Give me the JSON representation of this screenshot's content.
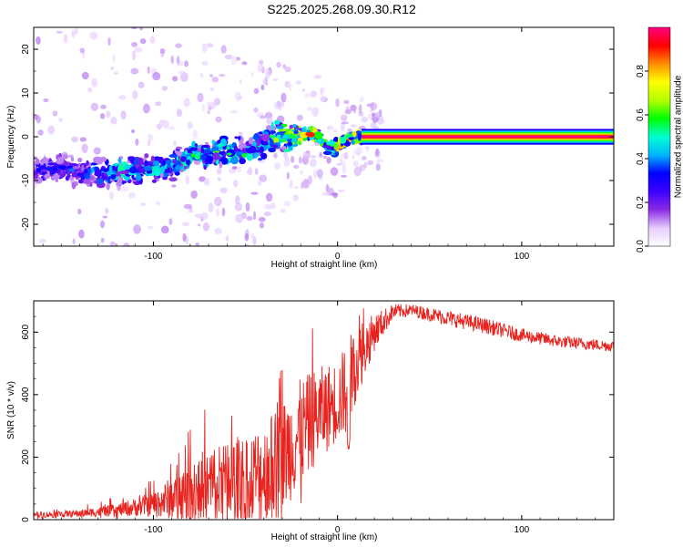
{
  "title": "S225.2025.268.09.30.R12",
  "chart_data": [
    {
      "type": "heatmap",
      "title": "S225.2025.268.09.30.R12",
      "xlabel": "Height of straight line (km)",
      "ylabel": "Frequency (Hz)",
      "xlim": [
        -165,
        150
      ],
      "ylim": [
        -25,
        25
      ],
      "x_ticks": [
        -100,
        0,
        100
      ],
      "y_ticks": [
        -20,
        -10,
        0,
        10,
        20
      ],
      "colorbar": {
        "label": "Normalized spectral amplitude",
        "range": [
          0,
          1
        ],
        "ticks": [
          0.0,
          0.2,
          0.4,
          0.6,
          0.8
        ],
        "colors": [
          "#ffffff",
          "#e6ccff",
          "#8a2be2",
          "#3c00ff",
          "#0000ff",
          "#00b7ff",
          "#00ffd0",
          "#00ff00",
          "#b4ff00",
          "#ffff00",
          "#ff8c00",
          "#ff0000",
          "#ff007f"
        ]
      },
      "ridge": [
        {
          "x": -160,
          "f": -7.5,
          "a": 0.35
        },
        {
          "x": -150,
          "f": -7.5,
          "a": 0.35
        },
        {
          "x": -140,
          "f": -8.0,
          "a": 0.38
        },
        {
          "x": -130,
          "f": -8.5,
          "a": 0.45
        },
        {
          "x": -120,
          "f": -8.0,
          "a": 0.55
        },
        {
          "x": -110,
          "f": -7.5,
          "a": 0.55
        },
        {
          "x": -100,
          "f": -7.5,
          "a": 0.5
        },
        {
          "x": -90,
          "f": -6.5,
          "a": 0.5
        },
        {
          "x": -80,
          "f": -4.5,
          "a": 0.55
        },
        {
          "x": -70,
          "f": -4.0,
          "a": 0.55
        },
        {
          "x": -60,
          "f": -3.0,
          "a": 0.6
        },
        {
          "x": -50,
          "f": -4.0,
          "a": 0.55
        },
        {
          "x": -40,
          "f": -1.5,
          "a": 0.6
        },
        {
          "x": -30,
          "f": 0.0,
          "a": 0.7
        },
        {
          "x": -20,
          "f": 0.5,
          "a": 0.75
        },
        {
          "x": -15,
          "f": 1.0,
          "a": 0.9
        },
        {
          "x": -10,
          "f": 0.0,
          "a": 0.7
        },
        {
          "x": -5,
          "f": -3.0,
          "a": 0.6
        },
        {
          "x": 0,
          "f": -2.0,
          "a": 0.9
        },
        {
          "x": 5,
          "f": -0.5,
          "a": 0.8
        },
        {
          "x": 10,
          "f": 0.0,
          "a": 0.85
        },
        {
          "x": 13,
          "f": 0.0,
          "a": 1.0
        },
        {
          "x": 150,
          "f": 0.0,
          "a": 1.0
        }
      ]
    },
    {
      "type": "line",
      "xlabel": "Height of straight line (km)",
      "ylabel": "SNR (10 * v/v)",
      "xlim": [
        -165,
        150
      ],
      "ylim": [
        0,
        700
      ],
      "x_ticks": [
        -100,
        0,
        100
      ],
      "y_ticks": [
        0,
        200,
        400,
        600
      ],
      "color": "#e8231e",
      "envelope": [
        {
          "x": -165,
          "base": 15,
          "noise": 10
        },
        {
          "x": -140,
          "base": 20,
          "noise": 12
        },
        {
          "x": -120,
          "base": 30,
          "noise": 20
        },
        {
          "x": -100,
          "base": 50,
          "noise": 40
        },
        {
          "x": -90,
          "base": 70,
          "noise": 70
        },
        {
          "x": -80,
          "base": 90,
          "noise": 100
        },
        {
          "x": -70,
          "base": 110,
          "noise": 130
        },
        {
          "x": -60,
          "base": 120,
          "noise": 140
        },
        {
          "x": -50,
          "base": 130,
          "noise": 150
        },
        {
          "x": -40,
          "base": 150,
          "noise": 160
        },
        {
          "x": -30,
          "base": 200,
          "noise": 180
        },
        {
          "x": -20,
          "base": 280,
          "noise": 170
        },
        {
          "x": -10,
          "base": 340,
          "noise": 150
        },
        {
          "x": 0,
          "base": 380,
          "noise": 130
        },
        {
          "x": 5,
          "base": 420,
          "noise": 150
        },
        {
          "x": 10,
          "base": 500,
          "noise": 120
        },
        {
          "x": 20,
          "base": 600,
          "noise": 60
        },
        {
          "x": 30,
          "base": 665,
          "noise": 25
        },
        {
          "x": 40,
          "base": 670,
          "noise": 20
        },
        {
          "x": 60,
          "base": 645,
          "noise": 25
        },
        {
          "x": 80,
          "base": 620,
          "noise": 25
        },
        {
          "x": 100,
          "base": 590,
          "noise": 22
        },
        {
          "x": 120,
          "base": 570,
          "noise": 20
        },
        {
          "x": 150,
          "base": 555,
          "noise": 18
        }
      ],
      "dips": [
        {
          "x": 6,
          "value": 220
        }
      ]
    }
  ]
}
